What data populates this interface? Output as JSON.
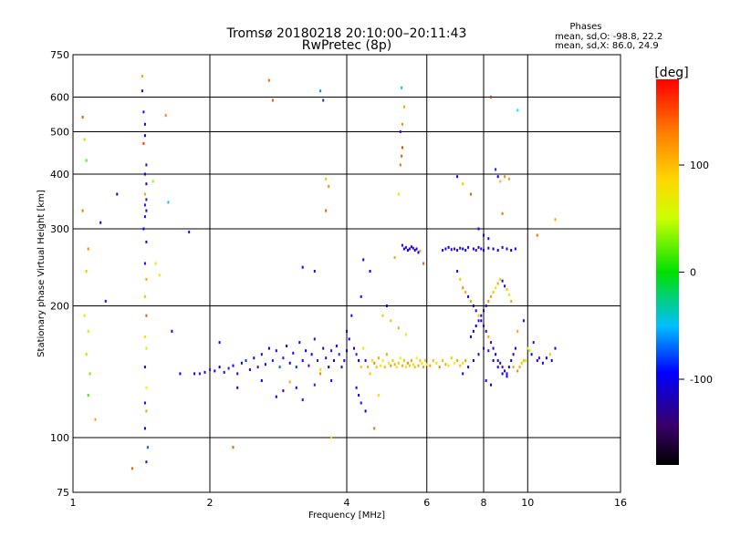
{
  "chart_data": {
    "type": "scatter",
    "title": "Tromsø 20180218 20:10:00–20:11:43",
    "subtitle": "RwPretec (8p)",
    "stats": {
      "heading": "Phases",
      "line1": "mean, sd,O:  -98.8, 22.2",
      "line2": "mean, sd,X:  86.0, 24.9"
    },
    "xlabel": "Frequency [MHz]",
    "ylabel": "Stationary phase Virtual Height [km]",
    "x_scale": "log",
    "y_scale": "log",
    "xlim": [
      1,
      16
    ],
    "ylim": [
      75,
      750
    ],
    "xticks": [
      1,
      2,
      4,
      6,
      8,
      10,
      16
    ],
    "xtick_labels": [
      "1",
      "2",
      "4",
      "6",
      "8",
      "10",
      "16"
    ],
    "yticks": [
      75,
      100,
      200,
      300,
      400,
      500,
      600,
      750
    ],
    "ytick_labels": [
      "75",
      "100",
      "200",
      "300",
      "400",
      "500",
      "600",
      "750"
    ],
    "grid": true,
    "colorbar": {
      "label": "[deg]",
      "range": [
        -180,
        180
      ],
      "tick_values": [
        100,
        0,
        -100
      ],
      "tick_labels": [
        "100",
        "0",
        "-100"
      ]
    },
    "color_by": "phase_deg",
    "points": [
      [
        1.05,
        540,
        150
      ],
      [
        1.06,
        480,
        60
      ],
      [
        1.07,
        430,
        30
      ],
      [
        1.05,
        330,
        140
      ],
      [
        1.08,
        270,
        130
      ],
      [
        1.07,
        240,
        110
      ],
      [
        1.06,
        190,
        100
      ],
      [
        1.08,
        175,
        70
      ],
      [
        1.07,
        155,
        60
      ],
      [
        1.09,
        140,
        40
      ],
      [
        1.08,
        125,
        20
      ],
      [
        1.12,
        110,
        120
      ],
      [
        1.15,
        310,
        -110
      ],
      [
        1.18,
        205,
        -120
      ],
      [
        1.25,
        360,
        -100
      ],
      [
        1.35,
        85,
        150
      ],
      [
        1.42,
        670,
        120
      ],
      [
        1.42,
        620,
        -110
      ],
      [
        1.43,
        555,
        -120
      ],
      [
        1.44,
        520,
        -110
      ],
      [
        1.44,
        490,
        -100
      ],
      [
        1.43,
        470,
        160
      ],
      [
        1.45,
        420,
        -120
      ],
      [
        1.44,
        400,
        -100
      ],
      [
        1.45,
        380,
        -110
      ],
      [
        1.44,
        360,
        120
      ],
      [
        1.45,
        350,
        -120
      ],
      [
        1.44,
        340,
        -130
      ],
      [
        1.45,
        330,
        -110
      ],
      [
        1.44,
        320,
        -120
      ],
      [
        1.43,
        300,
        -100
      ],
      [
        1.45,
        280,
        -110
      ],
      [
        1.44,
        250,
        -120
      ],
      [
        1.45,
        230,
        120
      ],
      [
        1.44,
        210,
        60
      ],
      [
        1.45,
        190,
        150
      ],
      [
        1.44,
        170,
        100
      ],
      [
        1.45,
        160,
        80
      ],
      [
        1.44,
        145,
        -110
      ],
      [
        1.45,
        130,
        90
      ],
      [
        1.44,
        120,
        -120
      ],
      [
        1.45,
        115,
        120
      ],
      [
        1.44,
        105,
        -100
      ],
      [
        1.46,
        95,
        -80
      ],
      [
        1.45,
        88,
        -120
      ],
      [
        1.5,
        385,
        60
      ],
      [
        1.52,
        250,
        100
      ],
      [
        1.55,
        235,
        100
      ],
      [
        1.6,
        545,
        130
      ],
      [
        1.62,
        345,
        -60
      ],
      [
        1.65,
        175,
        -110
      ],
      [
        1.72,
        140,
        -110
      ],
      [
        1.8,
        295,
        -120
      ],
      [
        1.85,
        140,
        -110
      ],
      [
        1.9,
        140,
        -130
      ],
      [
        1.95,
        141,
        -120
      ],
      [
        2.0,
        143,
        -140
      ],
      [
        2.05,
        142,
        -110
      ],
      [
        2.1,
        145,
        -100
      ],
      [
        2.15,
        141,
        -120
      ],
      [
        2.2,
        144,
        -130
      ],
      [
        2.25,
        146,
        -110
      ],
      [
        2.3,
        140,
        -120
      ],
      [
        2.35,
        148,
        -100
      ],
      [
        2.4,
        150,
        -90
      ],
      [
        2.45,
        143,
        -120
      ],
      [
        2.5,
        152,
        -110
      ],
      [
        2.55,
        145,
        -130
      ],
      [
        2.6,
        155,
        -120
      ],
      [
        2.65,
        147,
        -110
      ],
      [
        2.7,
        160,
        -100
      ],
      [
        2.75,
        150,
        -90
      ],
      [
        2.8,
        158,
        -120
      ],
      [
        2.85,
        145,
        -80
      ],
      [
        2.9,
        152,
        -130
      ],
      [
        2.95,
        162,
        -110
      ],
      [
        3.0,
        148,
        -100
      ],
      [
        3.05,
        156,
        -120
      ],
      [
        3.1,
        145,
        -90
      ],
      [
        3.15,
        165,
        -110
      ],
      [
        3.2,
        150,
        -120
      ],
      [
        3.25,
        158,
        -100
      ],
      [
        3.3,
        146,
        -130
      ],
      [
        3.35,
        155,
        -110
      ],
      [
        3.4,
        168,
        -120
      ],
      [
        3.45,
        150,
        -90
      ],
      [
        3.5,
        143,
        100
      ],
      [
        3.55,
        160,
        -110
      ],
      [
        3.6,
        152,
        -120
      ],
      [
        3.65,
        145,
        -100
      ],
      [
        3.7,
        158,
        -130
      ],
      [
        3.75,
        150,
        -110
      ],
      [
        3.8,
        162,
        -120
      ],
      [
        3.85,
        155,
        -90
      ],
      [
        3.9,
        145,
        -110
      ],
      [
        3.95,
        150,
        -120
      ],
      [
        4.0,
        158,
        -100
      ],
      [
        2.1,
        165,
        -120
      ],
      [
        2.3,
        130,
        -110
      ],
      [
        2.6,
        135,
        -100
      ],
      [
        2.9,
        128,
        -120
      ],
      [
        3.1,
        130,
        -110
      ],
      [
        3.4,
        132,
        -90
      ],
      [
        3.7,
        135,
        -120
      ],
      [
        3.2,
        122,
        -130
      ],
      [
        2.8,
        124,
        -110
      ],
      [
        3.0,
        134,
        120
      ],
      [
        3.5,
        140,
        130
      ],
      [
        2.25,
        95,
        150
      ],
      [
        2.7,
        655,
        140
      ],
      [
        2.75,
        590,
        150
      ],
      [
        3.2,
        245,
        -110
      ],
      [
        3.4,
        240,
        -120
      ],
      [
        3.5,
        620,
        -70
      ],
      [
        3.55,
        590,
        -90
      ],
      [
        3.6,
        390,
        110
      ],
      [
        3.65,
        375,
        130
      ],
      [
        3.6,
        330,
        150
      ],
      [
        3.7,
        100,
        100
      ],
      [
        4.0,
        175,
        -110
      ],
      [
        4.05,
        168,
        -100
      ],
      [
        4.1,
        190,
        -120
      ],
      [
        4.15,
        160,
        -110
      ],
      [
        4.2,
        155,
        -90
      ],
      [
        4.25,
        150,
        -100
      ],
      [
        4.3,
        145,
        110
      ],
      [
        4.35,
        160,
        100
      ],
      [
        4.4,
        150,
        -120
      ],
      [
        4.45,
        145,
        120
      ],
      [
        4.5,
        140,
        110
      ],
      [
        4.55,
        150,
        100
      ],
      [
        4.6,
        148,
        130
      ],
      [
        4.65,
        145,
        110
      ],
      [
        4.7,
        152,
        120
      ],
      [
        4.75,
        146,
        100
      ],
      [
        4.8,
        150,
        90
      ],
      [
        4.85,
        145,
        110
      ],
      [
        4.9,
        155,
        120
      ],
      [
        4.95,
        148,
        100
      ],
      [
        5.0,
        146,
        130
      ],
      [
        5.05,
        150,
        110
      ],
      [
        5.1,
        147,
        120
      ],
      [
        5.15,
        145,
        100
      ],
      [
        5.2,
        148,
        110
      ],
      [
        5.25,
        152,
        90
      ],
      [
        5.3,
        146,
        120
      ],
      [
        5.35,
        150,
        110
      ],
      [
        5.4,
        145,
        100
      ],
      [
        5.45,
        148,
        130
      ],
      [
        5.5,
        146,
        110
      ],
      [
        5.55,
        150,
        120
      ],
      [
        5.6,
        147,
        100
      ],
      [
        5.65,
        145,
        110
      ],
      [
        5.7,
        152,
        90
      ],
      [
        5.75,
        146,
        120
      ],
      [
        5.8,
        150,
        110
      ],
      [
        5.85,
        148,
        100
      ],
      [
        5.9,
        145,
        120
      ],
      [
        5.95,
        150,
        110
      ],
      [
        6.0,
        147,
        100
      ],
      [
        6.1,
        146,
        120
      ],
      [
        6.2,
        150,
        110
      ],
      [
        6.3,
        148,
        100
      ],
      [
        6.4,
        145,
        130
      ],
      [
        6.5,
        150,
        110
      ],
      [
        6.6,
        147,
        120
      ],
      [
        6.7,
        146,
        100
      ],
      [
        6.8,
        152,
        110
      ],
      [
        6.9,
        148,
        90
      ],
      [
        7.0,
        150,
        120
      ],
      [
        7.1,
        146,
        110
      ],
      [
        7.2,
        148,
        100
      ],
      [
        7.3,
        150,
        120
      ],
      [
        7.4,
        145,
        110
      ],
      [
        4.2,
        130,
        -120
      ],
      [
        4.25,
        125,
        -110
      ],
      [
        4.3,
        120,
        -130
      ],
      [
        4.4,
        115,
        -100
      ],
      [
        4.6,
        105,
        140
      ],
      [
        4.7,
        125,
        100
      ],
      [
        4.8,
        190,
        110
      ],
      [
        5.0,
        185,
        110
      ],
      [
        5.2,
        178,
        120
      ],
      [
        5.4,
        172,
        100
      ],
      [
        4.9,
        200,
        -110
      ],
      [
        4.3,
        210,
        -120
      ],
      [
        4.35,
        255,
        -110
      ],
      [
        4.5,
        240,
        -100
      ],
      [
        5.1,
        258,
        120
      ],
      [
        5.2,
        360,
        100
      ],
      [
        5.25,
        420,
        140
      ],
      [
        5.28,
        440,
        150
      ],
      [
        5.3,
        460,
        160
      ],
      [
        5.25,
        500,
        -140
      ],
      [
        5.3,
        520,
        130
      ],
      [
        5.28,
        630,
        -60
      ],
      [
        5.35,
        570,
        120
      ],
      [
        5.3,
        275,
        -120
      ],
      [
        5.35,
        270,
        -110
      ],
      [
        5.4,
        272,
        -130
      ],
      [
        5.45,
        268,
        -100
      ],
      [
        5.5,
        270,
        -120
      ],
      [
        5.55,
        273,
        -110
      ],
      [
        5.6,
        271,
        -130
      ],
      [
        5.65,
        268,
        -110
      ],
      [
        5.7,
        270,
        -120
      ],
      [
        5.75,
        265,
        -100
      ],
      [
        5.8,
        267,
        120
      ],
      [
        5.9,
        250,
        150
      ],
      [
        6.5,
        268,
        -120
      ],
      [
        6.6,
        270,
        -110
      ],
      [
        6.7,
        272,
        -100
      ],
      [
        6.8,
        269,
        -120
      ],
      [
        6.9,
        270,
        -130
      ],
      [
        7.0,
        268,
        -110
      ],
      [
        7.1,
        271,
        -120
      ],
      [
        7.2,
        270,
        -100
      ],
      [
        7.3,
        268,
        -110
      ],
      [
        7.4,
        272,
        -120
      ],
      [
        7.6,
        270,
        -110
      ],
      [
        7.7,
        268,
        -120
      ],
      [
        7.8,
        272,
        -100
      ],
      [
        7.9,
        270,
        -130
      ],
      [
        8.0,
        268,
        -110
      ],
      [
        8.2,
        271,
        -120
      ],
      [
        8.4,
        270,
        -100
      ],
      [
        8.6,
        268,
        -110
      ],
      [
        8.8,
        272,
        -120
      ],
      [
        9.0,
        270,
        -110
      ],
      [
        9.2,
        268,
        -100
      ],
      [
        9.4,
        270,
        -120
      ],
      [
        7.0,
        395,
        -110
      ],
      [
        7.2,
        380,
        110
      ],
      [
        7.5,
        360,
        150
      ],
      [
        7.8,
        300,
        -120
      ],
      [
        8.0,
        290,
        -110
      ],
      [
        8.2,
        285,
        -100
      ],
      [
        8.5,
        410,
        -90
      ],
      [
        8.6,
        395,
        -110
      ],
      [
        8.7,
        385,
        110
      ],
      [
        8.9,
        395,
        130
      ],
      [
        9.1,
        390,
        120
      ],
      [
        8.3,
        600,
        160
      ],
      [
        9.5,
        560,
        -50
      ],
      [
        8.8,
        325,
        140
      ],
      [
        10.5,
        290,
        140
      ],
      [
        11.5,
        315,
        120
      ],
      [
        7.0,
        240,
        -120
      ],
      [
        7.1,
        230,
        110
      ],
      [
        7.2,
        220,
        130
      ],
      [
        7.3,
        215,
        120
      ],
      [
        7.4,
        210,
        -110
      ],
      [
        7.5,
        205,
        120
      ],
      [
        7.6,
        200,
        -110
      ],
      [
        7.7,
        195,
        -120
      ],
      [
        7.8,
        190,
        110
      ],
      [
        7.9,
        185,
        -100
      ],
      [
        8.0,
        180,
        -120
      ],
      [
        8.1,
        175,
        -110
      ],
      [
        8.2,
        170,
        120
      ],
      [
        8.3,
        165,
        -130
      ],
      [
        8.4,
        160,
        -110
      ],
      [
        8.5,
        155,
        -100
      ],
      [
        8.6,
        150,
        -120
      ],
      [
        8.7,
        148,
        -110
      ],
      [
        8.8,
        145,
        -130
      ],
      [
        8.9,
        142,
        -100
      ],
      [
        9.0,
        140,
        -120
      ],
      [
        9.1,
        145,
        -110
      ],
      [
        9.2,
        150,
        -100
      ],
      [
        9.3,
        155,
        -120
      ],
      [
        9.4,
        160,
        -110
      ],
      [
        7.5,
        170,
        -120
      ],
      [
        7.6,
        175,
        -110
      ],
      [
        7.7,
        180,
        -100
      ],
      [
        7.8,
        185,
        -130
      ],
      [
        7.9,
        190,
        -120
      ],
      [
        8.0,
        195,
        -110
      ],
      [
        8.1,
        200,
        -120
      ],
      [
        8.2,
        205,
        130
      ],
      [
        8.3,
        210,
        120
      ],
      [
        8.4,
        215,
        110
      ],
      [
        8.5,
        220,
        100
      ],
      [
        8.6,
        225,
        120
      ],
      [
        8.7,
        230,
        110
      ],
      [
        8.8,
        228,
        -110
      ],
      [
        8.9,
        222,
        -120
      ],
      [
        9.0,
        218,
        110
      ],
      [
        9.1,
        212,
        100
      ],
      [
        9.2,
        205,
        120
      ],
      [
        7.2,
        140,
        -110
      ],
      [
        7.4,
        145,
        -120
      ],
      [
        7.6,
        150,
        -100
      ],
      [
        7.8,
        155,
        -110
      ],
      [
        8.0,
        160,
        -120
      ],
      [
        8.2,
        158,
        -130
      ],
      [
        8.4,
        150,
        -110
      ],
      [
        8.6,
        145,
        -120
      ],
      [
        8.8,
        140,
        -100
      ],
      [
        9.0,
        138,
        -110
      ],
      [
        8.1,
        135,
        -120
      ],
      [
        8.3,
        132,
        -110
      ],
      [
        9.5,
        175,
        120
      ],
      [
        9.8,
        185,
        -120
      ],
      [
        10.0,
        160,
        100
      ],
      [
        10.2,
        155,
        -110
      ],
      [
        10.5,
        150,
        -120
      ],
      [
        10.8,
        148,
        -110
      ],
      [
        11.0,
        152,
        -100
      ],
      [
        11.2,
        155,
        110
      ],
      [
        11.5,
        160,
        -110
      ],
      [
        9.6,
        145,
        120
      ],
      [
        9.8,
        150,
        110
      ],
      [
        10.1,
        158,
        60
      ],
      [
        10.3,
        165,
        -120
      ],
      [
        10.6,
        152,
        -130
      ],
      [
        11.3,
        150,
        -100
      ],
      [
        9.3,
        145,
        120
      ],
      [
        9.5,
        142,
        130
      ],
      [
        9.7,
        148,
        110
      ],
      [
        9.9,
        150,
        100
      ]
    ]
  }
}
